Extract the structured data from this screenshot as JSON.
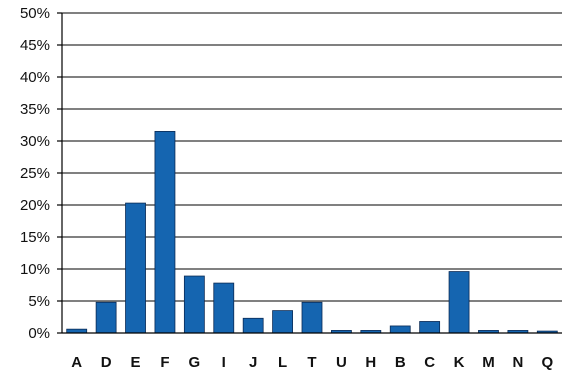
{
  "chart_data": {
    "type": "bar",
    "categories": [
      "A",
      "D",
      "E",
      "F",
      "G",
      "I",
      "J",
      "L",
      "T",
      "U",
      "H",
      "B",
      "C",
      "K",
      "M",
      "N",
      "Q"
    ],
    "values": [
      0.6,
      4.8,
      20.3,
      31.5,
      8.9,
      7.8,
      2.3,
      3.5,
      4.8,
      0.4,
      0.4,
      1.1,
      1.8,
      9.6,
      0.4,
      0.4,
      0.3
    ],
    "ylim": [
      0,
      50
    ],
    "yticks": [
      "0%",
      "5%",
      "10%",
      "15%",
      "20%",
      "25%",
      "30%",
      "35%",
      "40%",
      "45%",
      "50%"
    ],
    "title": "",
    "xlabel": "",
    "ylabel": "",
    "grid": true,
    "bar_color": "#1565b0"
  }
}
